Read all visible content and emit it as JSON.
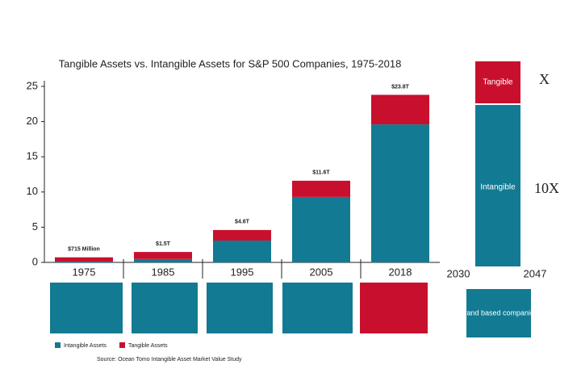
{
  "chart_data": {
    "type": "bar",
    "stacked": true,
    "title": "Tangible Assets vs. Intangible Assets for S&P 500 Companies, 1975-2018",
    "categories": [
      "1975",
      "1985",
      "1995",
      "2005",
      "2018"
    ],
    "series": [
      {
        "name": "Intangible Assets",
        "color": "#127a92",
        "values": [
          0.12,
          0.48,
          3.1,
          9.3,
          19.6
        ]
      },
      {
        "name": "Tangible Assets",
        "color": "#c8102e",
        "values": [
          0.6,
          1.0,
          1.5,
          2.3,
          4.2
        ]
      }
    ],
    "ylim": [
      0,
      25
    ],
    "yticks": [
      0,
      5,
      10,
      15,
      20,
      25
    ],
    "annotations": [
      "$715 Million",
      "$1.5T",
      "$4.6T",
      "$11.6T",
      "$23.8T"
    ],
    "source": "Source: Ocean Tomo Intangible Asset Market Value Study"
  },
  "side_panel": {
    "top_label": "Tangible",
    "top_mark": "X",
    "bottom_label": "Intangible",
    "bottom_mark": "10X",
    "start": "2030",
    "end": "2047",
    "note": "Brand based companies"
  }
}
